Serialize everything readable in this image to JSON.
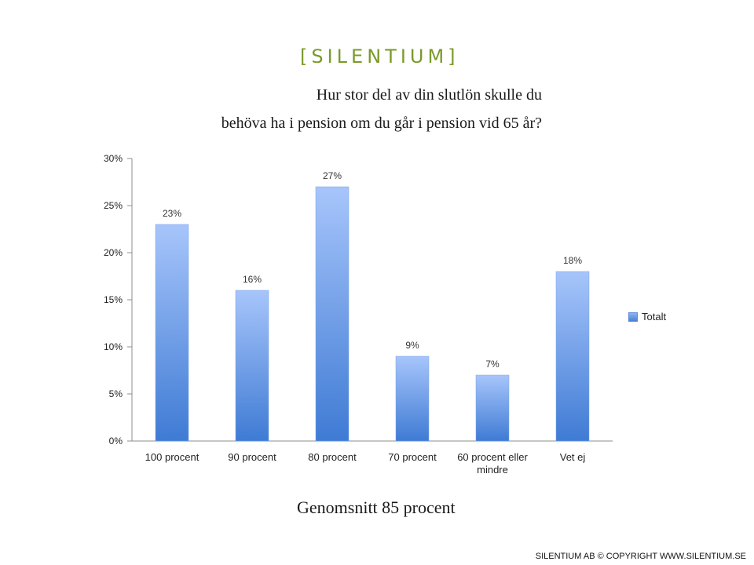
{
  "brand": {
    "logo_text": "[SILENTIUM]"
  },
  "title_lines": [
    "Hur stor del av din slutlön skulle du",
    "behöva ha i pension om du går i pension vid 65 år?"
  ],
  "footnote": "Genomsnitt 85 procent",
  "copyright": "SILENTIUM AB © COPYRIGHT WWW.SILENTIUM.SE",
  "colors": {
    "bar_top": "#a7c5fb",
    "bar_bottom": "#3f7bd4",
    "accent": "#7a9a2b"
  },
  "chart_data": {
    "type": "bar",
    "categories": [
      "100 procent",
      "90 procent",
      "80 procent",
      "70 procent",
      "60 procent eller mindre",
      "Vet ej"
    ],
    "series": [
      {
        "name": "Totalt",
        "values": [
          23,
          16,
          27,
          9,
          7,
          18
        ]
      }
    ],
    "data_labels": [
      "23%",
      "16%",
      "27%",
      "9%",
      "7%",
      "18%"
    ],
    "y_ticks": [
      "0%",
      "5%",
      "10%",
      "15%",
      "20%",
      "25%",
      "30%"
    ],
    "ylim": [
      0,
      30
    ],
    "grid": false,
    "legend_position": "right"
  }
}
